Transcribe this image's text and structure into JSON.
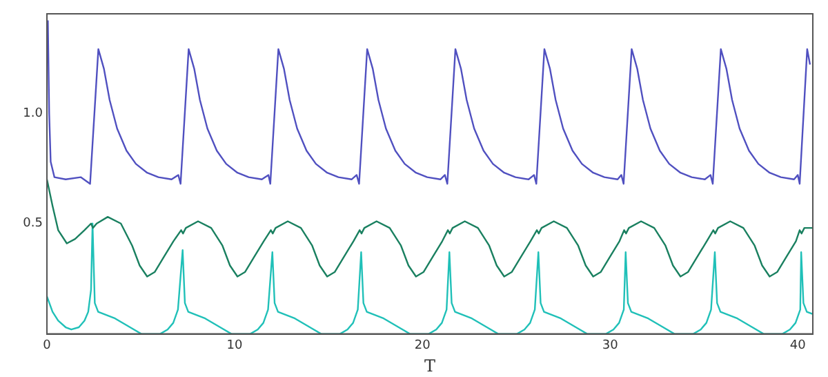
{
  "chart_data": {
    "type": "line",
    "xlabel": "T",
    "xlim": [
      0,
      40.8
    ],
    "xticks": [
      0,
      10,
      20,
      30,
      40
    ],
    "ylim": [
      0,
      1.45
    ],
    "yticks": [
      0.5,
      {
        "value": 1.0,
        "label": "1.0"
      }
    ],
    "grid": false,
    "legend": false,
    "marker": "none",
    "line_style": "solid",
    "series": [
      {
        "color": "#5050c0",
        "x": [
          0.05,
          0.12,
          0.2,
          0.4,
          1.0,
          1.8,
          2.3,
          2.74,
          3.04,
          3.34,
          3.74,
          4.24,
          4.74,
          5.34,
          5.94,
          6.64,
          7.0,
          7.12,
          7.55,
          7.85,
          8.15,
          8.55,
          9.05,
          9.55,
          10.15,
          10.75,
          11.45,
          11.8,
          11.9,
          12.33,
          12.63,
          12.93,
          13.33,
          13.83,
          14.33,
          14.93,
          15.53,
          16.23,
          16.5,
          16.63,
          17.06,
          17.36,
          17.66,
          18.06,
          18.56,
          19.06,
          19.66,
          20.26,
          20.96,
          21.2,
          21.33,
          21.76,
          22.06,
          22.36,
          22.76,
          23.26,
          23.76,
          24.36,
          24.96,
          25.66,
          25.95,
          26.07,
          26.5,
          26.8,
          27.1,
          27.5,
          28.0,
          28.5,
          29.1,
          29.7,
          30.4,
          30.6,
          30.72,
          31.15,
          31.45,
          31.75,
          32.15,
          32.65,
          33.15,
          33.75,
          34.35,
          35.05,
          35.35,
          35.47,
          35.9,
          36.2,
          36.5,
          36.9,
          37.4,
          37.9,
          38.5,
          39.1,
          39.8,
          40.0,
          40.1,
          40.5,
          40.65
        ],
        "values": [
          1.42,
          1.0,
          0.78,
          0.71,
          0.7,
          0.71,
          0.68,
          1.29,
          1.2,
          1.06,
          0.93,
          0.83,
          0.77,
          0.73,
          0.71,
          0.7,
          0.72,
          0.68,
          1.29,
          1.2,
          1.06,
          0.93,
          0.83,
          0.77,
          0.73,
          0.71,
          0.7,
          0.72,
          0.68,
          1.29,
          1.2,
          1.06,
          0.93,
          0.83,
          0.77,
          0.73,
          0.71,
          0.7,
          0.72,
          0.68,
          1.29,
          1.2,
          1.06,
          0.93,
          0.83,
          0.77,
          0.73,
          0.71,
          0.7,
          0.72,
          0.68,
          1.29,
          1.2,
          1.06,
          0.93,
          0.83,
          0.77,
          0.73,
          0.71,
          0.7,
          0.72,
          0.68,
          1.29,
          1.2,
          1.06,
          0.93,
          0.83,
          0.77,
          0.73,
          0.71,
          0.7,
          0.72,
          0.68,
          1.29,
          1.2,
          1.06,
          0.93,
          0.83,
          0.77,
          0.73,
          0.71,
          0.7,
          0.72,
          0.68,
          1.29,
          1.2,
          1.06,
          0.93,
          0.83,
          0.77,
          0.73,
          0.71,
          0.7,
          0.72,
          0.68,
          1.29,
          1.22
        ]
      },
      {
        "color": "#1a8060",
        "x": [
          0,
          0.3,
          0.6,
          1.06,
          1.5,
          2.0,
          2.35,
          2.45,
          2.65,
          3.24,
          3.94,
          4.54,
          4.94,
          5.34,
          5.74,
          6.24,
          6.74,
          7.15,
          7.25,
          7.4,
          8.05,
          8.75,
          9.35,
          9.75,
          10.15,
          10.55,
          11.05,
          11.55,
          11.93,
          12.03,
          12.18,
          12.83,
          13.53,
          14.13,
          14.53,
          14.93,
          15.33,
          15.83,
          16.33,
          16.66,
          16.76,
          16.91,
          17.56,
          18.26,
          18.86,
          19.26,
          19.66,
          20.06,
          20.56,
          21.06,
          21.36,
          21.46,
          21.61,
          22.26,
          22.96,
          23.56,
          23.96,
          24.36,
          24.76,
          25.26,
          25.76,
          26.1,
          26.2,
          26.35,
          27.0,
          27.7,
          28.3,
          28.7,
          29.1,
          29.5,
          30.0,
          30.5,
          30.75,
          30.85,
          31.0,
          31.65,
          32.35,
          32.95,
          33.35,
          33.75,
          34.15,
          34.65,
          35.15,
          35.5,
          35.6,
          35.75,
          36.4,
          37.1,
          37.7,
          38.1,
          38.5,
          38.9,
          39.4,
          39.9,
          40.1,
          40.2,
          40.35,
          40.8
        ],
        "values": [
          0.7,
          0.58,
          0.47,
          0.41,
          0.43,
          0.47,
          0.5,
          0.48,
          0.5,
          0.53,
          0.5,
          0.4,
          0.31,
          0.26,
          0.28,
          0.35,
          0.42,
          0.47,
          0.455,
          0.48,
          0.51,
          0.48,
          0.4,
          0.31,
          0.26,
          0.28,
          0.35,
          0.42,
          0.47,
          0.455,
          0.48,
          0.51,
          0.48,
          0.4,
          0.31,
          0.26,
          0.28,
          0.35,
          0.42,
          0.47,
          0.455,
          0.48,
          0.51,
          0.48,
          0.4,
          0.31,
          0.26,
          0.28,
          0.35,
          0.42,
          0.47,
          0.455,
          0.48,
          0.51,
          0.48,
          0.4,
          0.31,
          0.26,
          0.28,
          0.35,
          0.42,
          0.47,
          0.455,
          0.48,
          0.51,
          0.48,
          0.4,
          0.31,
          0.26,
          0.28,
          0.35,
          0.42,
          0.47,
          0.455,
          0.48,
          0.51,
          0.48,
          0.4,
          0.31,
          0.26,
          0.28,
          0.35,
          0.42,
          0.47,
          0.455,
          0.48,
          0.51,
          0.48,
          0.4,
          0.31,
          0.26,
          0.28,
          0.35,
          0.42,
          0.47,
          0.455,
          0.48,
          0.48
        ]
      },
      {
        "color": "#20c0b8",
        "x": [
          0,
          0.3,
          0.6,
          1.0,
          1.3,
          1.7,
          2.0,
          2.2,
          2.35,
          2.43,
          2.55,
          2.73,
          3.63,
          4.43,
          5.03,
          6.03,
          6.43,
          6.73,
          6.98,
          7.23,
          7.35,
          7.53,
          8.43,
          9.23,
          9.83,
          10.83,
          11.23,
          11.53,
          11.78,
          12.01,
          12.13,
          12.31,
          13.21,
          14.01,
          14.61,
          15.61,
          16.01,
          16.31,
          16.56,
          16.74,
          16.86,
          17.04,
          17.94,
          18.74,
          19.34,
          20.34,
          20.74,
          21.04,
          21.29,
          21.44,
          21.56,
          21.74,
          22.64,
          23.44,
          24.04,
          25.04,
          25.44,
          25.74,
          25.99,
          26.18,
          26.3,
          26.48,
          27.38,
          28.18,
          28.78,
          29.78,
          30.18,
          30.48,
          30.73,
          30.83,
          30.95,
          31.13,
          32.03,
          32.83,
          33.43,
          34.43,
          34.83,
          35.13,
          35.38,
          35.58,
          35.7,
          35.88,
          36.78,
          37.58,
          38.18,
          39.18,
          39.58,
          39.88,
          40.13,
          40.18,
          40.3,
          40.48,
          40.8
        ],
        "values": [
          0.17,
          0.1,
          0.06,
          0.03,
          0.02,
          0.03,
          0.06,
          0.1,
          0.2,
          0.5,
          0.14,
          0.1,
          0.07,
          0.03,
          0,
          0,
          0.02,
          0.05,
          0.11,
          0.38,
          0.14,
          0.1,
          0.07,
          0.03,
          0,
          0,
          0.02,
          0.05,
          0.11,
          0.37,
          0.14,
          0.1,
          0.07,
          0.03,
          0,
          0,
          0.02,
          0.05,
          0.11,
          0.37,
          0.14,
          0.1,
          0.07,
          0.03,
          0,
          0,
          0.02,
          0.05,
          0.11,
          0.37,
          0.14,
          0.1,
          0.07,
          0.03,
          0,
          0,
          0.02,
          0.05,
          0.11,
          0.37,
          0.14,
          0.1,
          0.07,
          0.03,
          0,
          0,
          0.02,
          0.05,
          0.11,
          0.37,
          0.14,
          0.1,
          0.07,
          0.03,
          0,
          0,
          0.02,
          0.05,
          0.11,
          0.37,
          0.14,
          0.1,
          0.07,
          0.03,
          0,
          0,
          0.02,
          0.05,
          0.11,
          0.37,
          0.14,
          0.1,
          0.09
        ]
      }
    ]
  }
}
